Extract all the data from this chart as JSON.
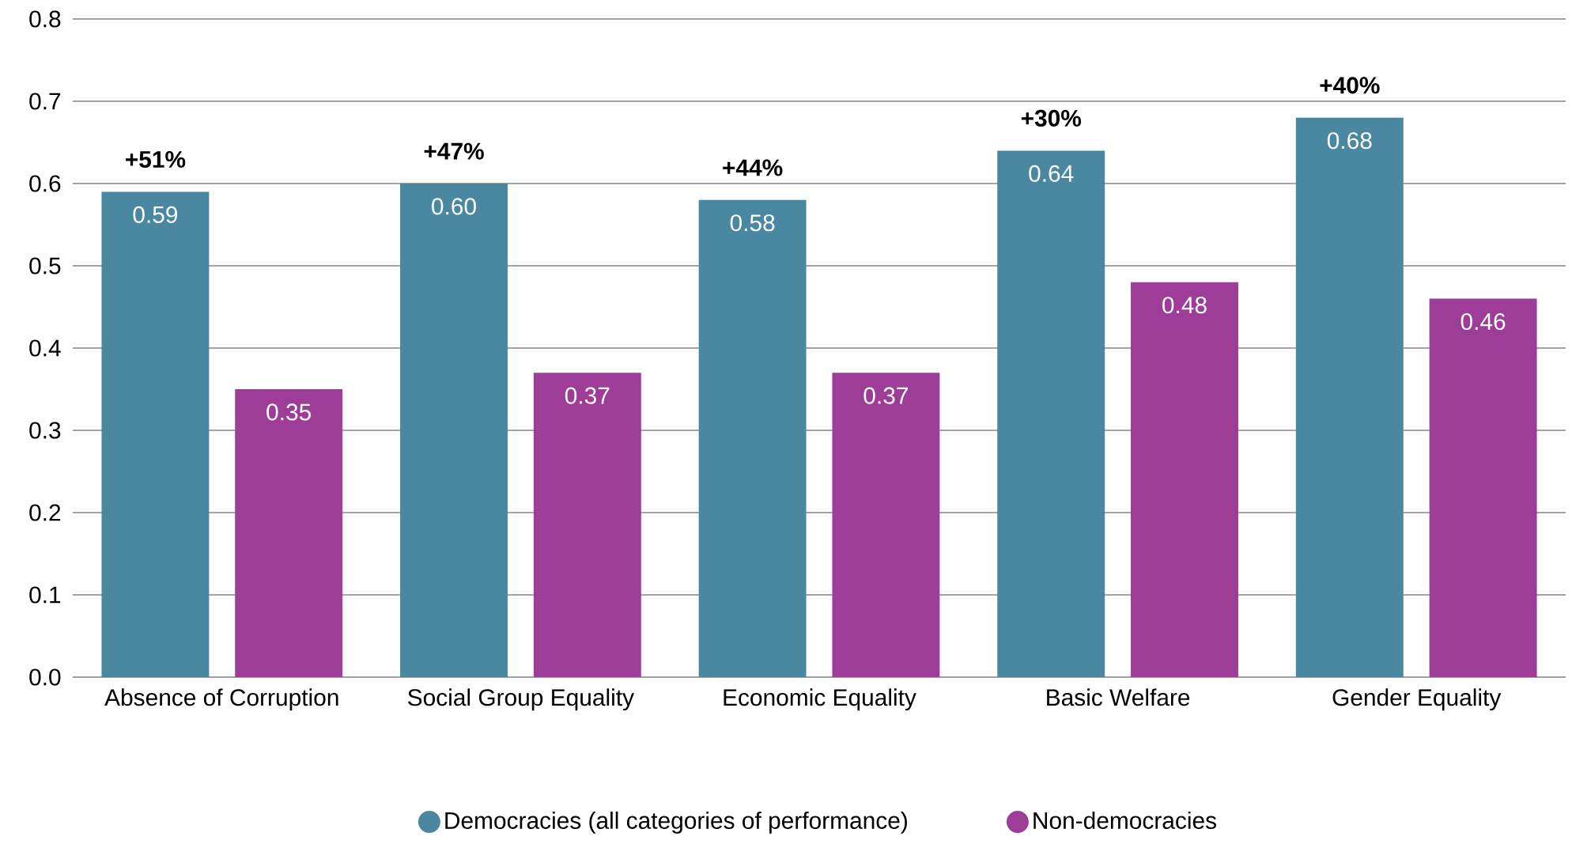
{
  "chart_data": {
    "type": "bar",
    "categories": [
      "Absence of Corruption",
      "Social Group Equality",
      "Economic Equality",
      "Basic Welfare",
      "Gender Equality"
    ],
    "series": [
      {
        "name": "Democracies (all categories of performance)",
        "color": "#4a88a2",
        "values": [
          0.59,
          0.6,
          0.58,
          0.64,
          0.68
        ],
        "value_labels": [
          "0.59",
          "0.60",
          "0.58",
          "0.64",
          "0.68"
        ]
      },
      {
        "name": "Non-democracies",
        "color": "#9e3d97",
        "values": [
          0.35,
          0.37,
          0.37,
          0.48,
          0.46
        ],
        "value_labels": [
          "0.35",
          "0.37",
          "0.37",
          "0.48",
          "0.46"
        ]
      }
    ],
    "ylim": [
      0,
      0.8
    ],
    "yticks": [
      {
        "value": 0,
        "label": "0.0"
      },
      0.1,
      0.2,
      0.3,
      0.4,
      0.5,
      0.6,
      0.7,
      0.8
    ],
    "grid": "y",
    "legend": "bottom",
    "annotations": [
      "+51%",
      "+47%",
      "+44%",
      "+30%",
      "+40%"
    ]
  }
}
